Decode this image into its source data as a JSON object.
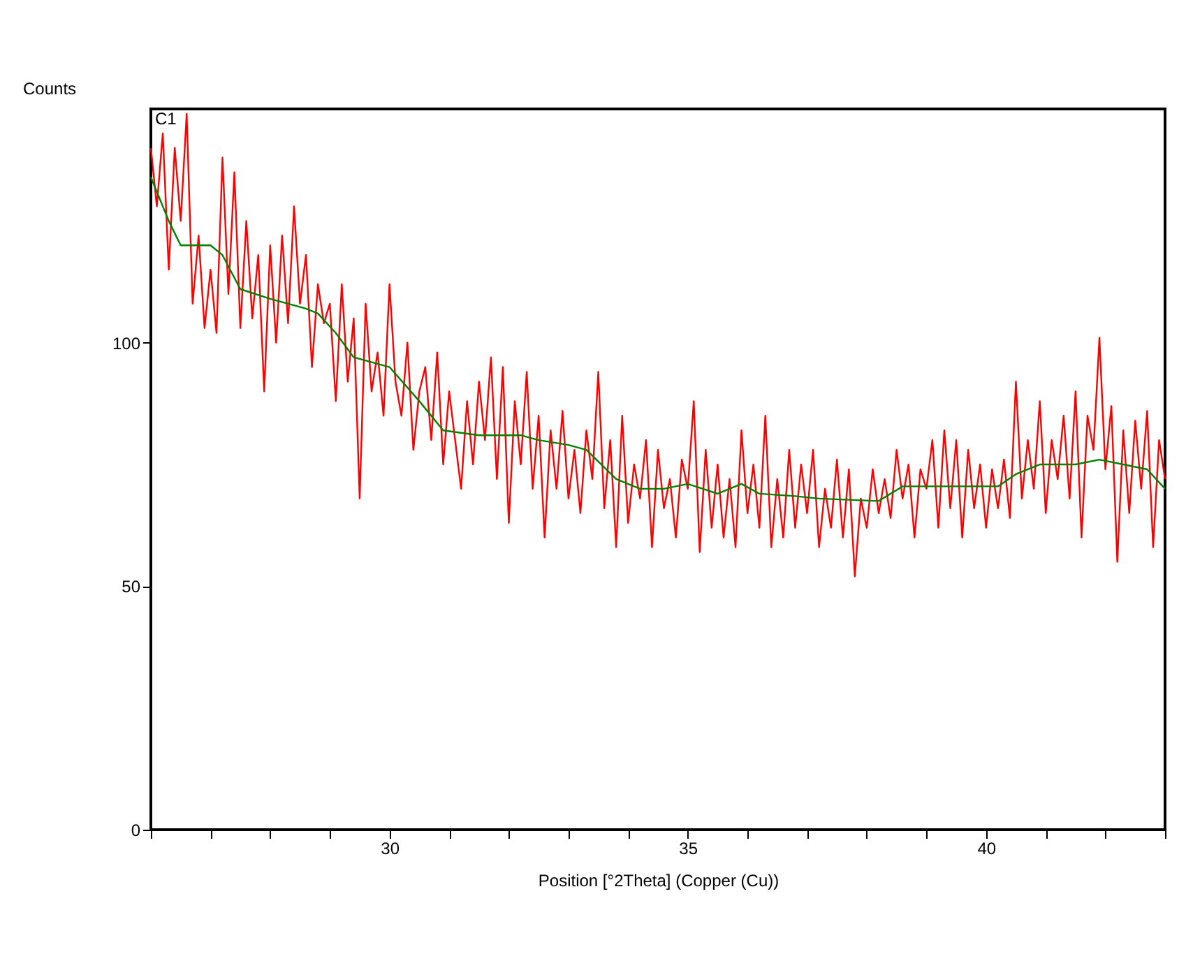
{
  "chart_data": {
    "type": "line",
    "ylabel": "Counts",
    "xlabel": "Position [°2Theta] (Copper (Cu))",
    "annotations": [
      "C1"
    ],
    "xlim": [
      26,
      43
    ],
    "ylim": [
      0,
      148
    ],
    "xticks": [
      {
        "value": 26,
        "label": null
      },
      {
        "value": 27,
        "label": null
      },
      {
        "value": 28,
        "label": null
      },
      {
        "value": 29,
        "label": null
      },
      30,
      {
        "value": 31,
        "label": null
      },
      {
        "value": 32,
        "label": null
      },
      {
        "value": 33,
        "label": null
      },
      {
        "value": 34,
        "label": null
      },
      35,
      {
        "value": 36,
        "label": null
      },
      {
        "value": 37,
        "label": null
      },
      {
        "value": 38,
        "label": null
      },
      {
        "value": 39,
        "label": null
      },
      40,
      {
        "value": 41,
        "label": null
      },
      {
        "value": 42,
        "label": null
      },
      {
        "value": 43,
        "label": null
      }
    ],
    "yticks": [
      0,
      50,
      100
    ],
    "grid": false,
    "marker": "none",
    "line_style": "solid",
    "series": [
      {
        "color": "#ff0000",
        "x": [
          26.0,
          26.1,
          26.2,
          26.3,
          26.4,
          26.5,
          26.6,
          26.7,
          26.8,
          26.9,
          27.0,
          27.1,
          27.2,
          27.3,
          27.4,
          27.5,
          27.6,
          27.7,
          27.8,
          27.9,
          28.0,
          28.1,
          28.2,
          28.3,
          28.4,
          28.5,
          28.6,
          28.7,
          28.8,
          28.9,
          29.0,
          29.1,
          29.2,
          29.3,
          29.4,
          29.5,
          29.6,
          29.7,
          29.8,
          29.9,
          30.0,
          30.1,
          30.2,
          30.3,
          30.4,
          30.5,
          30.6,
          30.7,
          30.8,
          30.9,
          31.0,
          31.1,
          31.2,
          31.3,
          31.4,
          31.5,
          31.6,
          31.7,
          31.8,
          31.9,
          32.0,
          32.1,
          32.2,
          32.3,
          32.4,
          32.5,
          32.6,
          32.7,
          32.8,
          32.9,
          33.0,
          33.1,
          33.2,
          33.3,
          33.4,
          33.5,
          33.6,
          33.7,
          33.8,
          33.9,
          34.0,
          34.1,
          34.2,
          34.3,
          34.4,
          34.5,
          34.6,
          34.7,
          34.8,
          34.9,
          35.0,
          35.1,
          35.2,
          35.3,
          35.4,
          35.5,
          35.6,
          35.7,
          35.8,
          35.9,
          36.0,
          36.1,
          36.2,
          36.3,
          36.4,
          36.5,
          36.6,
          36.7,
          36.8,
          36.9,
          37.0,
          37.1,
          37.2,
          37.3,
          37.4,
          37.5,
          37.6,
          37.7,
          37.8,
          37.9,
          38.0,
          38.1,
          38.2,
          38.3,
          38.4,
          38.5,
          38.6,
          38.7,
          38.8,
          38.9,
          39.0,
          39.1,
          39.2,
          39.3,
          39.4,
          39.5,
          39.6,
          39.7,
          39.8,
          39.9,
          40.0,
          40.1,
          40.2,
          40.3,
          40.4,
          40.5,
          40.6,
          40.7,
          40.8,
          40.9,
          41.0,
          41.1,
          41.2,
          41.3,
          41.4,
          41.5,
          41.6,
          41.7,
          41.8,
          41.9,
          42.0,
          42.1,
          42.2,
          42.3,
          42.4,
          42.5,
          42.6,
          42.7,
          42.8,
          42.9,
          43.0
        ],
        "values": [
          140,
          128,
          143,
          115,
          140,
          125,
          147,
          108,
          122,
          103,
          115,
          102,
          138,
          110,
          135,
          103,
          125,
          105,
          118,
          90,
          120,
          100,
          122,
          104,
          128,
          108,
          118,
          95,
          112,
          104,
          108,
          88,
          112,
          92,
          105,
          68,
          108,
          90,
          98,
          85,
          112,
          92,
          85,
          100,
          78,
          90,
          95,
          80,
          98,
          75,
          90,
          80,
          70,
          88,
          75,
          92,
          80,
          97,
          72,
          95,
          63,
          88,
          75,
          94,
          70,
          85,
          60,
          82,
          70,
          86,
          68,
          78,
          65,
          82,
          72,
          94,
          66,
          80,
          58,
          85,
          63,
          75,
          68,
          80,
          58,
          78,
          66,
          72,
          60,
          76,
          70,
          88,
          57,
          78,
          62,
          75,
          60,
          72,
          58,
          82,
          65,
          75,
          62,
          85,
          58,
          72,
          60,
          78,
          62,
          75,
          65,
          78,
          58,
          70,
          62,
          76,
          60,
          74,
          52,
          68,
          62,
          74,
          65,
          72,
          64,
          78,
          68,
          75,
          60,
          74,
          70,
          80,
          62,
          82,
          66,
          80,
          60,
          78,
          66,
          75,
          62,
          74,
          66,
          76,
          64,
          92,
          68,
          80,
          70,
          88,
          65,
          80,
          72,
          85,
          68,
          90,
          60,
          85,
          78,
          101,
          74,
          87,
          55,
          82,
          65,
          84,
          70,
          86,
          58,
          80,
          72
        ]
      },
      {
        "color": "#008000",
        "x": [
          26.0,
          26.3,
          26.5,
          27.0,
          27.2,
          27.5,
          28.0,
          28.6,
          28.8,
          29.1,
          29.4,
          29.7,
          30.0,
          30.5,
          30.9,
          31.5,
          32.2,
          32.5,
          33.0,
          33.3,
          33.8,
          34.2,
          34.6,
          35.0,
          35.5,
          35.9,
          36.2,
          36.8,
          37.2,
          38.2,
          38.6,
          39.3,
          40.2,
          40.5,
          40.9,
          41.5,
          41.9,
          42.3,
          42.7,
          43.0
        ],
        "values": [
          134,
          125,
          120,
          120,
          118,
          111,
          109,
          107,
          106,
          102,
          97,
          96,
          95,
          88,
          82,
          81,
          81,
          80,
          79,
          78,
          72,
          70,
          70,
          71,
          69,
          71,
          69,
          68.5,
          68,
          67.5,
          70.5,
          70.5,
          70.5,
          73,
          75,
          75,
          76,
          75,
          74,
          70
        ]
      }
    ]
  }
}
